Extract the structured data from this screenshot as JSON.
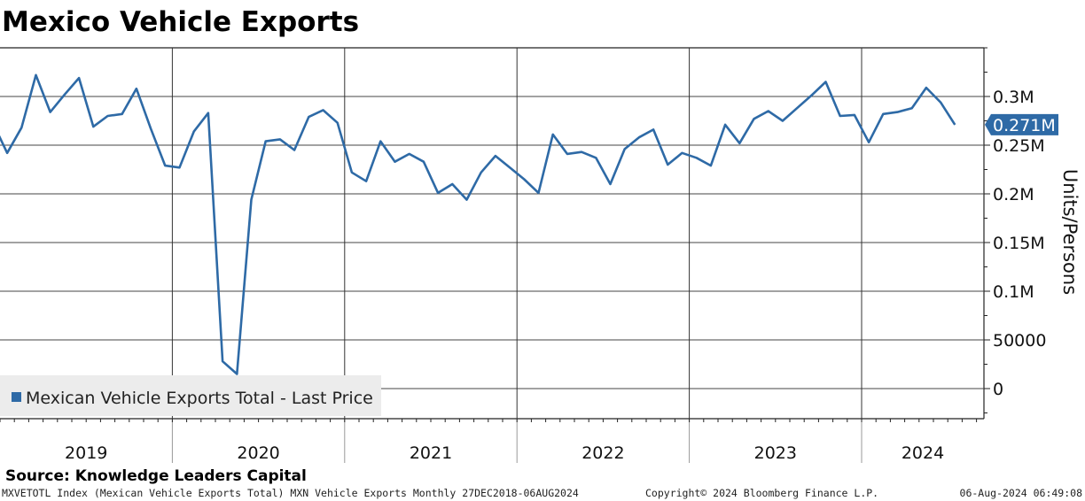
{
  "chart_data": {
    "type": "line",
    "title": "Mexico Vehicle Exports",
    "ylabel": "Units/Persons",
    "xlabel": "",
    "ylim": [
      -30000,
      350000
    ],
    "y_ticks": [
      0,
      50000,
      100000,
      150000,
      200000,
      250000,
      300000
    ],
    "y_tick_labels": [
      "0",
      "50000",
      "0.1M",
      "0.15M",
      "0.2M",
      "0.25M",
      "0.3M"
    ],
    "x_year_labels": [
      "2019",
      "2020",
      "2021",
      "2022",
      "2023",
      "2024"
    ],
    "x_start": "2018-12",
    "x_end": "2024-07",
    "grid": true,
    "legend": {
      "position": "bottom-left",
      "label": "Mexican Vehicle Exports Total - Last Price",
      "color": "#2e6aa6"
    },
    "last_value_label": "0.271M",
    "last_value": 271000,
    "series": [
      {
        "name": "Mexican Vehicle Exports Total - Last Price",
        "color": "#2e6aa6",
        "x": [
          "2018-12",
          "2019-01",
          "2019-02",
          "2019-03",
          "2019-04",
          "2019-05",
          "2019-06",
          "2019-07",
          "2019-08",
          "2019-09",
          "2019-10",
          "2019-11",
          "2019-12",
          "2020-01",
          "2020-02",
          "2020-03",
          "2020-04",
          "2020-05",
          "2020-06",
          "2020-07",
          "2020-08",
          "2020-09",
          "2020-10",
          "2020-11",
          "2020-12",
          "2021-01",
          "2021-02",
          "2021-03",
          "2021-04",
          "2021-05",
          "2021-06",
          "2021-07",
          "2021-08",
          "2021-09",
          "2021-10",
          "2021-11",
          "2021-12",
          "2022-01",
          "2022-02",
          "2022-03",
          "2022-04",
          "2022-05",
          "2022-06",
          "2022-07",
          "2022-08",
          "2022-09",
          "2022-10",
          "2022-11",
          "2022-12",
          "2023-01",
          "2023-02",
          "2023-03",
          "2023-04",
          "2023-05",
          "2023-06",
          "2023-07",
          "2023-08",
          "2023-09",
          "2023-10",
          "2023-11",
          "2023-12",
          "2024-01",
          "2024-02",
          "2024-03",
          "2024-04",
          "2024-05",
          "2024-06",
          "2024-07"
        ],
        "values": [
          273000,
          242000,
          268000,
          322000,
          284000,
          302000,
          319000,
          269000,
          280000,
          282000,
          308000,
          267000,
          229000,
          227000,
          264000,
          283000,
          28000,
          15000,
          194000,
          254000,
          256000,
          245000,
          279000,
          286000,
          273000,
          222000,
          213000,
          254000,
          233000,
          241000,
          233000,
          201000,
          210000,
          194000,
          222000,
          239000,
          227000,
          215000,
          201000,
          261000,
          241000,
          243000,
          237000,
          210000,
          246000,
          258000,
          266000,
          230000,
          242000,
          237000,
          229000,
          271000,
          252000,
          277000,
          285000,
          275000,
          288000,
          301000,
          315000,
          280000,
          281000,
          253000,
          282000,
          284000,
          288000,
          309000,
          294000,
          271000
        ]
      }
    ]
  },
  "footer": {
    "source": "Source: Knowledge Leaders Capital",
    "description": "MXVETOTL Index (Mexican Vehicle Exports Total) MXN Vehicle Exports  Monthly 27DEC2018-06AUG2024",
    "copyright": "Copyright© 2024 Bloomberg Finance L.P.",
    "timestamp": "06-Aug-2024 06:49:08"
  }
}
